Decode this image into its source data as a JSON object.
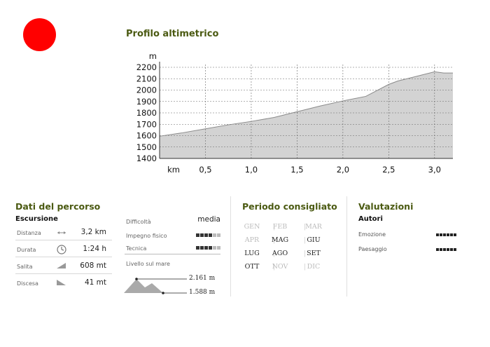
{
  "profile": {
    "title": "Profilo altimetrico",
    "unit_y": "m",
    "unit_x": "km",
    "chart_data": {
      "type": "area",
      "xlabel": "km",
      "ylabel": "m",
      "xlim": [
        0,
        3.2
      ],
      "ylim": [
        1400,
        2200
      ],
      "y_ticks": [
        1400,
        1500,
        1600,
        1700,
        1800,
        1900,
        2000,
        2100,
        2200
      ],
      "x_ticks": [
        "0,5",
        "1,0",
        "1,5",
        "2,0",
        "2,5",
        "3,0"
      ],
      "x_tick_values": [
        0.5,
        1.0,
        1.5,
        2.0,
        2.5,
        3.0
      ],
      "grid": true,
      "x": [
        0,
        0.25,
        0.5,
        0.75,
        1.0,
        1.25,
        1.5,
        1.75,
        2.0,
        2.25,
        2.5,
        2.6,
        2.75,
        3.0,
        3.1,
        3.2
      ],
      "y": [
        1595,
        1625,
        1660,
        1695,
        1725,
        1760,
        1810,
        1860,
        1905,
        1945,
        2050,
        2080,
        2110,
        2161,
        2150,
        2150
      ]
    }
  },
  "dati": {
    "title": "Dati del percorso",
    "subtitle": "Escursione",
    "rows": [
      {
        "label": "Distanza",
        "icon": "arrow-both-icon",
        "value": "3,2 km"
      },
      {
        "label": "Durata",
        "icon": "clock-icon",
        "value": "1:24 h"
      },
      {
        "label": "Salita",
        "icon": "ascent-icon",
        "value": "608 mt"
      },
      {
        "label": "Discesa",
        "icon": "descent-icon",
        "value": "41 mt"
      }
    ]
  },
  "difficulty": {
    "difficolta_label": "Difficoltà",
    "difficolta_value": "media",
    "impegno_label": "Impegno fisico",
    "impegno_level": 4,
    "tecnica_label": "Tecnica",
    "tecnica_level": 4,
    "max_level": 6,
    "livello_label": "Livello sul mare",
    "alt_max": "2.161 m",
    "alt_min": "1.588 m"
  },
  "periodo": {
    "title": "Periodo consigliato",
    "months": [
      {
        "name": "GEN",
        "active": false
      },
      {
        "name": "FEB",
        "active": false
      },
      {
        "name": "MAR",
        "active": false
      },
      {
        "name": "APR",
        "active": false
      },
      {
        "name": "MAG",
        "active": true
      },
      {
        "name": "GIU",
        "active": true
      },
      {
        "name": "LUG",
        "active": true
      },
      {
        "name": "AGO",
        "active": true
      },
      {
        "name": "SET",
        "active": true
      },
      {
        "name": "OTT",
        "active": true
      },
      {
        "name": "NOV",
        "active": false
      },
      {
        "name": "DIC",
        "active": false
      }
    ]
  },
  "valutazioni": {
    "title": "Valutazioni",
    "subtitle": "Autori",
    "rows": [
      {
        "label": "Emozione",
        "level": 6
      },
      {
        "label": "Paesaggio",
        "level": 6
      }
    ]
  },
  "colors": {
    "accent": "#4b5a12",
    "dot": "#ff0000",
    "fill": "#d3d3d3",
    "dark_square": "#333333",
    "light_square": "#bbbbbb"
  }
}
